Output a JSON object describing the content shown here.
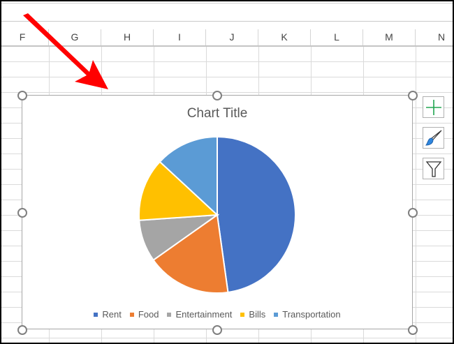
{
  "spreadsheet": {
    "columns": [
      "F",
      "G",
      "H",
      "I",
      "J",
      "K",
      "L",
      "M",
      "N"
    ]
  },
  "chart": {
    "title": "Chart Title",
    "legend": [
      "Rent",
      "Food",
      "Entertainment",
      "Bills",
      "Transportation"
    ]
  },
  "side_buttons": [
    {
      "icon": "plus-icon",
      "label": "Chart Elements"
    },
    {
      "icon": "brush-icon",
      "label": "Chart Styles"
    },
    {
      "icon": "funnel-icon",
      "label": "Chart Filters"
    }
  ],
  "annotation": {
    "icon": "red-arrow-icon",
    "color": "#ff0000"
  },
  "chart_data": {
    "type": "pie",
    "title": "Chart Title",
    "categories": [
      "Rent",
      "Food",
      "Entertainment",
      "Bills",
      "Transportation"
    ],
    "values": [
      47.8,
      17.4,
      8.7,
      13.0,
      13.1
    ],
    "value_unit": "percent of total (estimated)",
    "colors": [
      "#4472c4",
      "#ed7d31",
      "#a5a5a5",
      "#ffc000",
      "#5b9bd5"
    ],
    "legend_position": "bottom"
  }
}
